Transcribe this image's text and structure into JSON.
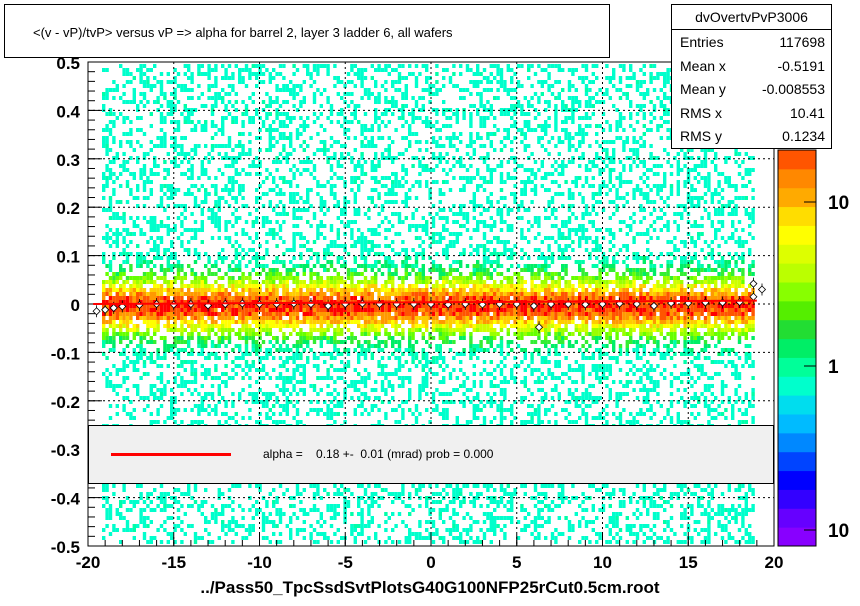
{
  "chart_data": {
    "type": "heatmap",
    "title": "<(v - vP)/tvP> versus   vP => alpha for barrel 2, layer 3 ladder 6, all wafers",
    "xlim": [
      -20,
      20
    ],
    "ylim": [
      -0.5,
      0.5
    ],
    "x_ticks": [
      "-20",
      "-15",
      "-10",
      "-5",
      "0",
      "5",
      "10",
      "15",
      "20"
    ],
    "y_ticks": [
      "0.5",
      "0.4",
      "0.3",
      "0.2",
      "0.1",
      "0",
      "-0.1",
      "-0.2",
      "-0.3",
      "-0.4",
      "-0.5"
    ],
    "colorbar_ticks": [
      "10",
      "1",
      "10"
    ],
    "grid": true,
    "profile_points": [
      {
        "x": -19.5,
        "y": -0.015
      },
      {
        "x": -19,
        "y": -0.012
      },
      {
        "x": -18.5,
        "y": -0.008
      },
      {
        "x": -18,
        "y": -0.005
      },
      {
        "x": -17,
        "y": -0.002
      },
      {
        "x": -16,
        "y": 0.0
      },
      {
        "x": -15,
        "y": -0.001
      },
      {
        "x": -14,
        "y": 0.0
      },
      {
        "x": -13,
        "y": -0.003
      },
      {
        "x": -12,
        "y": 0.0
      },
      {
        "x": -11,
        "y": 0.001
      },
      {
        "x": -10,
        "y": 0.0
      },
      {
        "x": -9,
        "y": 0.0
      },
      {
        "x": -8,
        "y": 0.001
      },
      {
        "x": -7,
        "y": 0.0
      },
      {
        "x": -6,
        "y": -0.004
      },
      {
        "x": -5,
        "y": 0.0
      },
      {
        "x": -4,
        "y": 0.001
      },
      {
        "x": -3,
        "y": 0.0
      },
      {
        "x": -2,
        "y": 0.0
      },
      {
        "x": -1,
        "y": 0.0
      },
      {
        "x": 0,
        "y": 0.0
      },
      {
        "x": 1,
        "y": -0.001
      },
      {
        "x": 2,
        "y": 0.0
      },
      {
        "x": 3,
        "y": -0.001
      },
      {
        "x": 4,
        "y": 0.0
      },
      {
        "x": 5,
        "y": 0.0
      },
      {
        "x": 6,
        "y": -0.004
      },
      {
        "x": 6.3,
        "y": -0.048
      },
      {
        "x": 7,
        "y": 0.0
      },
      {
        "x": 8,
        "y": 0.0
      },
      {
        "x": 9,
        "y": -0.001
      },
      {
        "x": 10,
        "y": 0.0
      },
      {
        "x": 11,
        "y": 0.001
      },
      {
        "x": 12,
        "y": 0.0
      },
      {
        "x": 13,
        "y": -0.004
      },
      {
        "x": 14,
        "y": 0.002
      },
      {
        "x": 15,
        "y": 0.002
      },
      {
        "x": 16,
        "y": 0.003
      },
      {
        "x": 17,
        "y": 0.003
      },
      {
        "x": 18,
        "y": 0.004
      },
      {
        "x": 18.8,
        "y": 0.042
      },
      {
        "x": 18.8,
        "y": 0.015
      },
      {
        "x": 19.3,
        "y": 0.03
      }
    ],
    "fit_line": {
      "x_start": -19.7,
      "x_end": 19,
      "y_start": 0.0,
      "y_end": 0.007
    }
  },
  "stats_box": {
    "title": "dvOvertvPvP3006",
    "rows": [
      {
        "key": "Entries",
        "value": "117698"
      },
      {
        "key": "Mean x",
        "value": "-0.5191"
      },
      {
        "key": "Mean y",
        "value": "-0.008553"
      },
      {
        "key": "RMS x",
        "value": "10.41"
      },
      {
        "key": "RMS y",
        "value": "0.1234"
      }
    ]
  },
  "legend": {
    "text": "alpha =    0.18 +-  0.01 (mrad) prob = 0.000",
    "line_color": "#ff0000"
  },
  "footer": "../Pass50_TpcSsdSvtPlotsG40G100NFP25rCut0.5cm.root"
}
